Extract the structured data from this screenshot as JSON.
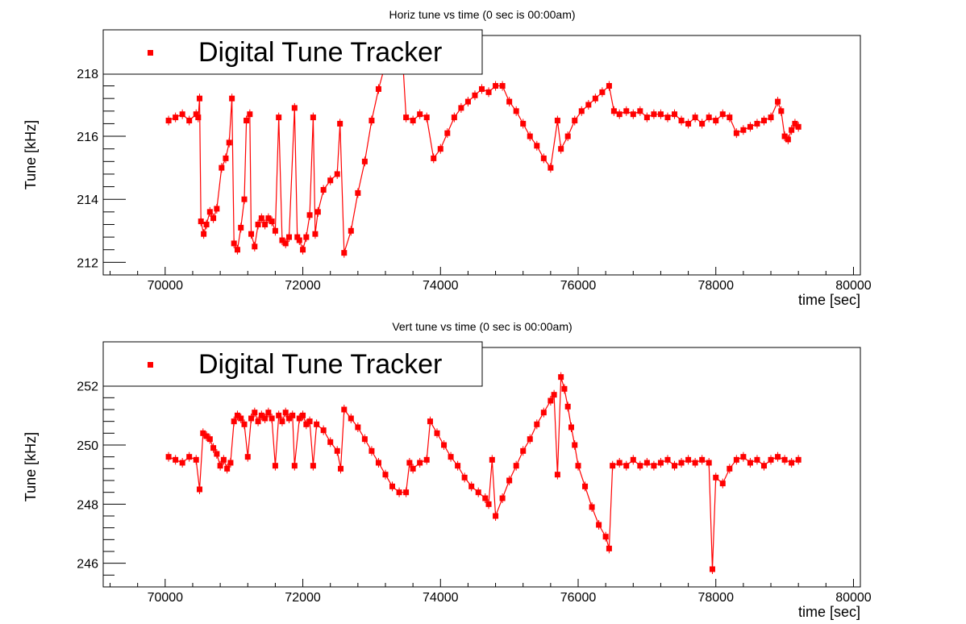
{
  "colors": {
    "series": "#ff0000",
    "axis": "#000000",
    "background": "#ffffff"
  },
  "chart_data": [
    {
      "type": "scatter",
      "title": "Horiz tune vs time (0 sec is 00:00am)",
      "xlabel": "time [sec]",
      "ylabel": "Tune [kHz]",
      "xlim": [
        69100,
        80100
      ],
      "ylim": [
        211.6,
        219.2
      ],
      "x_ticks": [
        70000,
        72000,
        74000,
        76000,
        78000,
        80000
      ],
      "y_ticks": [
        212,
        214,
        216,
        218
      ],
      "legend": {
        "position": "top-left",
        "entries": [
          "Digital Tune Tracker"
        ]
      },
      "grid": false,
      "series": [
        {
          "name": "Digital Tune Tracker",
          "color": "#ff0000",
          "marker": "square-with-error-bars",
          "points": [
            [
              70050,
              216.5
            ],
            [
              70150,
              216.6
            ],
            [
              70250,
              216.7
            ],
            [
              70350,
              216.5
            ],
            [
              70450,
              216.7
            ],
            [
              70480,
              216.6
            ],
            [
              70500,
              217.2
            ],
            [
              70520,
              213.3
            ],
            [
              70560,
              212.9
            ],
            [
              70600,
              213.2
            ],
            [
              70650,
              213.6
            ],
            [
              70700,
              213.4
            ],
            [
              70750,
              213.7
            ],
            [
              70820,
              215.0
            ],
            [
              70880,
              215.3
            ],
            [
              70930,
              215.8
            ],
            [
              70970,
              217.2
            ],
            [
              71000,
              212.6
            ],
            [
              71050,
              212.4
            ],
            [
              71100,
              213.1
            ],
            [
              71150,
              214.0
            ],
            [
              71180,
              216.5
            ],
            [
              71230,
              216.7
            ],
            [
              71250,
              212.9
            ],
            [
              71300,
              212.5
            ],
            [
              71350,
              213.2
            ],
            [
              71400,
              213.4
            ],
            [
              71450,
              213.2
            ],
            [
              71500,
              213.4
            ],
            [
              71550,
              213.3
            ],
            [
              71600,
              213.0
            ],
            [
              71650,
              216.6
            ],
            [
              71700,
              212.7
            ],
            [
              71750,
              212.6
            ],
            [
              71800,
              212.8
            ],
            [
              71880,
              216.9
            ],
            [
              71920,
              212.8
            ],
            [
              71950,
              212.7
            ],
            [
              72000,
              212.4
            ],
            [
              72050,
              212.8
            ],
            [
              72100,
              213.5
            ],
            [
              72150,
              216.6
            ],
            [
              72180,
              212.9
            ],
            [
              72220,
              213.6
            ],
            [
              72300,
              214.3
            ],
            [
              72400,
              214.6
            ],
            [
              72500,
              214.8
            ],
            [
              72540,
              216.4
            ],
            [
              72600,
              212.3
            ],
            [
              72700,
              213.0
            ],
            [
              72800,
              214.2
            ],
            [
              72900,
              215.2
            ],
            [
              73000,
              216.5
            ],
            [
              73100,
              217.5
            ],
            [
              73200,
              218.3
            ],
            [
              73350,
              218.4
            ],
            [
              73450,
              218.5
            ],
            [
              73500,
              216.6
            ],
            [
              73600,
              216.5
            ],
            [
              73700,
              216.7
            ],
            [
              73800,
              216.6
            ],
            [
              73900,
              215.3
            ],
            [
              74000,
              215.6
            ],
            [
              74100,
              216.1
            ],
            [
              74200,
              216.6
            ],
            [
              74300,
              216.9
            ],
            [
              74400,
              217.1
            ],
            [
              74500,
              217.3
            ],
            [
              74600,
              217.5
            ],
            [
              74700,
              217.4
            ],
            [
              74800,
              217.6
            ],
            [
              74900,
              217.6
            ],
            [
              75000,
              217.1
            ],
            [
              75100,
              216.8
            ],
            [
              75200,
              216.4
            ],
            [
              75300,
              216.0
            ],
            [
              75400,
              215.7
            ],
            [
              75500,
              215.3
            ],
            [
              75600,
              215.0
            ],
            [
              75700,
              216.5
            ],
            [
              75750,
              215.6
            ],
            [
              75850,
              216.0
            ],
            [
              75950,
              216.5
            ],
            [
              76050,
              216.8
            ],
            [
              76150,
              217.0
            ],
            [
              76250,
              217.2
            ],
            [
              76350,
              217.4
            ],
            [
              76450,
              217.6
            ],
            [
              76520,
              216.8
            ],
            [
              76600,
              216.7
            ],
            [
              76700,
              216.8
            ],
            [
              76800,
              216.7
            ],
            [
              76900,
              216.8
            ],
            [
              77000,
              216.6
            ],
            [
              77100,
              216.7
            ],
            [
              77200,
              216.7
            ],
            [
              77300,
              216.6
            ],
            [
              77400,
              216.7
            ],
            [
              77500,
              216.5
            ],
            [
              77600,
              216.4
            ],
            [
              77700,
              216.6
            ],
            [
              77800,
              216.4
            ],
            [
              77900,
              216.6
            ],
            [
              78000,
              216.5
            ],
            [
              78100,
              216.7
            ],
            [
              78200,
              216.6
            ],
            [
              78300,
              216.1
            ],
            [
              78400,
              216.2
            ],
            [
              78500,
              216.3
            ],
            [
              78600,
              216.4
            ],
            [
              78700,
              216.5
            ],
            [
              78800,
              216.6
            ],
            [
              78900,
              217.1
            ],
            [
              78950,
              216.8
            ],
            [
              79000,
              216.0
            ],
            [
              79050,
              215.9
            ],
            [
              79100,
              216.2
            ],
            [
              79150,
              216.4
            ],
            [
              79200,
              216.3
            ]
          ]
        }
      ]
    },
    {
      "type": "scatter",
      "title": "Vert tune vs time (0 sec is 00:00am)",
      "xlabel": "time [sec]",
      "ylabel": "Tune [kHz]",
      "xlim": [
        69100,
        80100
      ],
      "ylim": [
        245.2,
        253.3
      ],
      "x_ticks": [
        70000,
        72000,
        74000,
        76000,
        78000,
        80000
      ],
      "y_ticks": [
        246,
        248,
        250,
        252
      ],
      "legend": {
        "position": "top-left",
        "entries": [
          "Digital Tune Tracker"
        ]
      },
      "grid": false,
      "series": [
        {
          "name": "Digital Tune Tracker",
          "color": "#ff0000",
          "marker": "square-with-error-bars",
          "points": [
            [
              70050,
              249.6
            ],
            [
              70150,
              249.5
            ],
            [
              70250,
              249.4
            ],
            [
              70350,
              249.6
            ],
            [
              70450,
              249.5
            ],
            [
              70500,
              248.5
            ],
            [
              70550,
              250.4
            ],
            [
              70600,
              250.3
            ],
            [
              70650,
              250.2
            ],
            [
              70700,
              249.9
            ],
            [
              70750,
              249.7
            ],
            [
              70800,
              249.3
            ],
            [
              70850,
              249.5
            ],
            [
              70900,
              249.2
            ],
            [
              70950,
              249.4
            ],
            [
              71000,
              250.8
            ],
            [
              71050,
              251.0
            ],
            [
              71100,
              250.9
            ],
            [
              71150,
              250.7
            ],
            [
              71200,
              249.6
            ],
            [
              71250,
              250.9
            ],
            [
              71300,
              251.1
            ],
            [
              71350,
              250.8
            ],
            [
              71400,
              251.0
            ],
            [
              71450,
              250.9
            ],
            [
              71500,
              251.1
            ],
            [
              71550,
              250.9
            ],
            [
              71600,
              249.3
            ],
            [
              71650,
              251.0
            ],
            [
              71700,
              250.8
            ],
            [
              71750,
              251.1
            ],
            [
              71800,
              250.9
            ],
            [
              71850,
              251.0
            ],
            [
              71880,
              249.3
            ],
            [
              71950,
              250.9
            ],
            [
              72000,
              251.0
            ],
            [
              72050,
              250.7
            ],
            [
              72100,
              250.8
            ],
            [
              72150,
              249.3
            ],
            [
              72200,
              250.7
            ],
            [
              72300,
              250.5
            ],
            [
              72400,
              250.1
            ],
            [
              72500,
              249.8
            ],
            [
              72550,
              249.2
            ],
            [
              72600,
              251.2
            ],
            [
              72700,
              250.9
            ],
            [
              72800,
              250.6
            ],
            [
              72900,
              250.2
            ],
            [
              73000,
              249.8
            ],
            [
              73100,
              249.4
            ],
            [
              73200,
              249.0
            ],
            [
              73300,
              248.6
            ],
            [
              73400,
              248.4
            ],
            [
              73500,
              248.4
            ],
            [
              73550,
              249.4
            ],
            [
              73600,
              249.2
            ],
            [
              73700,
              249.4
            ],
            [
              73800,
              249.5
            ],
            [
              73850,
              250.8
            ],
            [
              73950,
              250.4
            ],
            [
              74050,
              250.0
            ],
            [
              74150,
              249.6
            ],
            [
              74250,
              249.3
            ],
            [
              74350,
              248.9
            ],
            [
              74450,
              248.6
            ],
            [
              74550,
              248.4
            ],
            [
              74650,
              248.2
            ],
            [
              74700,
              248.0
            ],
            [
              74750,
              249.5
            ],
            [
              74800,
              247.6
            ],
            [
              74900,
              248.2
            ],
            [
              75000,
              248.8
            ],
            [
              75100,
              249.3
            ],
            [
              75200,
              249.8
            ],
            [
              75300,
              250.2
            ],
            [
              75400,
              250.7
            ],
            [
              75500,
              251.1
            ],
            [
              75600,
              251.5
            ],
            [
              75650,
              251.7
            ],
            [
              75700,
              249.0
            ],
            [
              75750,
              252.3
            ],
            [
              75800,
              251.9
            ],
            [
              75850,
              251.3
            ],
            [
              75900,
              250.6
            ],
            [
              75950,
              250.0
            ],
            [
              76000,
              249.3
            ],
            [
              76100,
              248.6
            ],
            [
              76200,
              247.9
            ],
            [
              76300,
              247.3
            ],
            [
              76400,
              246.9
            ],
            [
              76450,
              246.5
            ],
            [
              76500,
              249.3
            ],
            [
              76600,
              249.4
            ],
            [
              76700,
              249.3
            ],
            [
              76800,
              249.5
            ],
            [
              76900,
              249.3
            ],
            [
              77000,
              249.4
            ],
            [
              77100,
              249.3
            ],
            [
              77200,
              249.4
            ],
            [
              77300,
              249.5
            ],
            [
              77400,
              249.3
            ],
            [
              77500,
              249.4
            ],
            [
              77600,
              249.5
            ],
            [
              77700,
              249.4
            ],
            [
              77800,
              249.5
            ],
            [
              77900,
              249.4
            ],
            [
              77950,
              245.8
            ],
            [
              78000,
              248.9
            ],
            [
              78100,
              248.7
            ],
            [
              78200,
              249.2
            ],
            [
              78300,
              249.5
            ],
            [
              78400,
              249.6
            ],
            [
              78500,
              249.4
            ],
            [
              78600,
              249.5
            ],
            [
              78700,
              249.3
            ],
            [
              78800,
              249.5
            ],
            [
              78900,
              249.6
            ],
            [
              79000,
              249.5
            ],
            [
              79100,
              249.4
            ],
            [
              79200,
              249.5
            ]
          ]
        }
      ]
    }
  ]
}
